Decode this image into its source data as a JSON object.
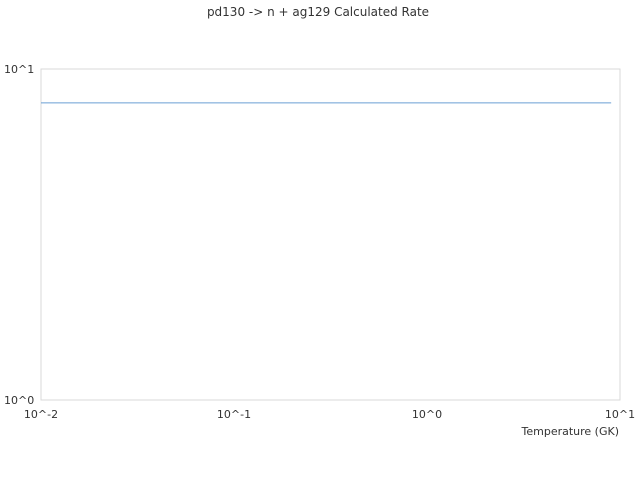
{
  "chart_data": {
    "type": "line",
    "title": "pd130 -> n + ag129 Calculated Rate",
    "xlabel": "Temperature (GK)",
    "ylabel": "",
    "x_scale": "log",
    "y_scale": "log",
    "xlim": [
      0.01,
      10
    ],
    "ylim": [
      1,
      10
    ],
    "x_ticks": [
      {
        "value": 0.01,
        "label": "10^-2"
      },
      {
        "value": 0.1,
        "label": "10^-1"
      },
      {
        "value": 1,
        "label": "10^0"
      },
      {
        "value": 10,
        "label": "10^1"
      }
    ],
    "y_ticks": [
      {
        "value": 1,
        "label": "10^0"
      },
      {
        "value": 10,
        "label": "10^1"
      }
    ],
    "grid": false,
    "series": [
      {
        "color": "#6a9fd4",
        "x": [
          0.01,
          9.0
        ],
        "y": [
          7.9,
          7.9
        ]
      }
    ]
  }
}
